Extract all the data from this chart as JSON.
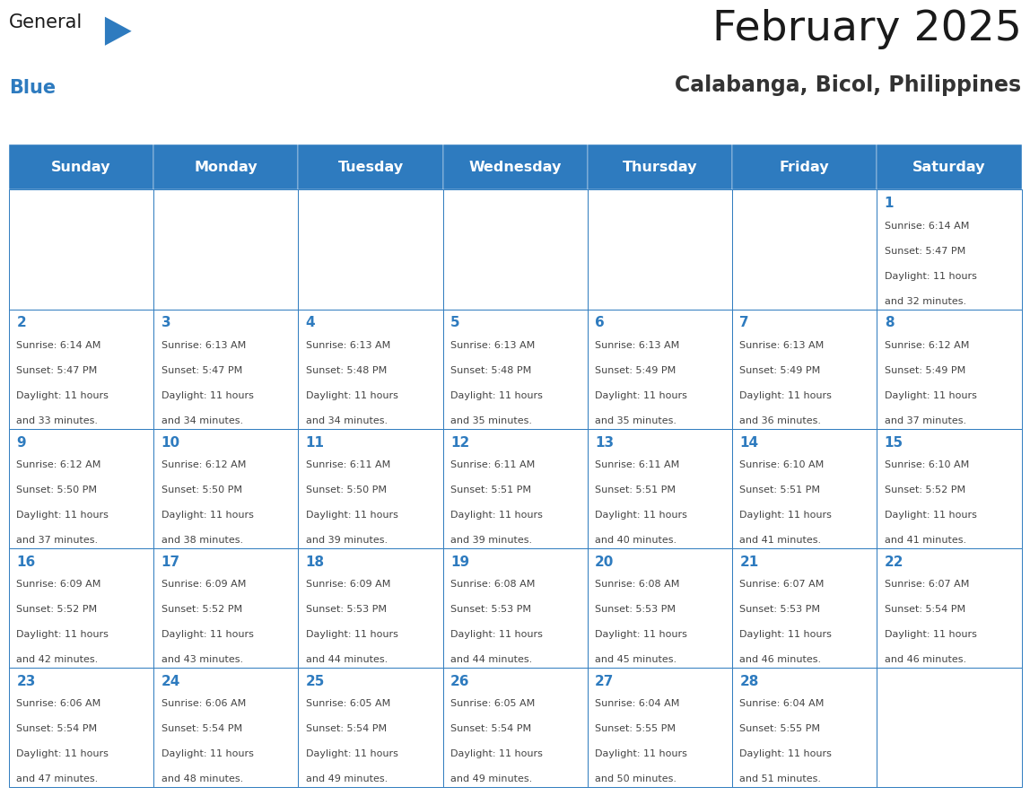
{
  "title": "February 2025",
  "subtitle": "Calabanga, Bicol, Philippines",
  "days_of_week": [
    "Sunday",
    "Monday",
    "Tuesday",
    "Wednesday",
    "Thursday",
    "Friday",
    "Saturday"
  ],
  "header_bg": "#2E7BBF",
  "header_text": "#FFFFFF",
  "cell_bg": "#FFFFFF",
  "border_color": "#2E7BBF",
  "day_num_color": "#2E7BBF",
  "info_color": "#444444",
  "title_color": "#1a1a1a",
  "subtitle_color": "#333333",
  "logo_general_color": "#1a1a1a",
  "logo_blue_color": "#2E7BBF",
  "calendar_data": [
    [
      null,
      null,
      null,
      null,
      null,
      null,
      {
        "day": 1,
        "sunrise": "6:14 AM",
        "sunset": "5:47 PM",
        "daylight": "11 hours and 32 minutes."
      }
    ],
    [
      {
        "day": 2,
        "sunrise": "6:14 AM",
        "sunset": "5:47 PM",
        "daylight": "11 hours and 33 minutes."
      },
      {
        "day": 3,
        "sunrise": "6:13 AM",
        "sunset": "5:47 PM",
        "daylight": "11 hours and 34 minutes."
      },
      {
        "day": 4,
        "sunrise": "6:13 AM",
        "sunset": "5:48 PM",
        "daylight": "11 hours and 34 minutes."
      },
      {
        "day": 5,
        "sunrise": "6:13 AM",
        "sunset": "5:48 PM",
        "daylight": "11 hours and 35 minutes."
      },
      {
        "day": 6,
        "sunrise": "6:13 AM",
        "sunset": "5:49 PM",
        "daylight": "11 hours and 35 minutes."
      },
      {
        "day": 7,
        "sunrise": "6:13 AM",
        "sunset": "5:49 PM",
        "daylight": "11 hours and 36 minutes."
      },
      {
        "day": 8,
        "sunrise": "6:12 AM",
        "sunset": "5:49 PM",
        "daylight": "11 hours and 37 minutes."
      }
    ],
    [
      {
        "day": 9,
        "sunrise": "6:12 AM",
        "sunset": "5:50 PM",
        "daylight": "11 hours and 37 minutes."
      },
      {
        "day": 10,
        "sunrise": "6:12 AM",
        "sunset": "5:50 PM",
        "daylight": "11 hours and 38 minutes."
      },
      {
        "day": 11,
        "sunrise": "6:11 AM",
        "sunset": "5:50 PM",
        "daylight": "11 hours and 39 minutes."
      },
      {
        "day": 12,
        "sunrise": "6:11 AM",
        "sunset": "5:51 PM",
        "daylight": "11 hours and 39 minutes."
      },
      {
        "day": 13,
        "sunrise": "6:11 AM",
        "sunset": "5:51 PM",
        "daylight": "11 hours and 40 minutes."
      },
      {
        "day": 14,
        "sunrise": "6:10 AM",
        "sunset": "5:51 PM",
        "daylight": "11 hours and 41 minutes."
      },
      {
        "day": 15,
        "sunrise": "6:10 AM",
        "sunset": "5:52 PM",
        "daylight": "11 hours and 41 minutes."
      }
    ],
    [
      {
        "day": 16,
        "sunrise": "6:09 AM",
        "sunset": "5:52 PM",
        "daylight": "11 hours and 42 minutes."
      },
      {
        "day": 17,
        "sunrise": "6:09 AM",
        "sunset": "5:52 PM",
        "daylight": "11 hours and 43 minutes."
      },
      {
        "day": 18,
        "sunrise": "6:09 AM",
        "sunset": "5:53 PM",
        "daylight": "11 hours and 44 minutes."
      },
      {
        "day": 19,
        "sunrise": "6:08 AM",
        "sunset": "5:53 PM",
        "daylight": "11 hours and 44 minutes."
      },
      {
        "day": 20,
        "sunrise": "6:08 AM",
        "sunset": "5:53 PM",
        "daylight": "11 hours and 45 minutes."
      },
      {
        "day": 21,
        "sunrise": "6:07 AM",
        "sunset": "5:53 PM",
        "daylight": "11 hours and 46 minutes."
      },
      {
        "day": 22,
        "sunrise": "6:07 AM",
        "sunset": "5:54 PM",
        "daylight": "11 hours and 46 minutes."
      }
    ],
    [
      {
        "day": 23,
        "sunrise": "6:06 AM",
        "sunset": "5:54 PM",
        "daylight": "11 hours and 47 minutes."
      },
      {
        "day": 24,
        "sunrise": "6:06 AM",
        "sunset": "5:54 PM",
        "daylight": "11 hours and 48 minutes."
      },
      {
        "day": 25,
        "sunrise": "6:05 AM",
        "sunset": "5:54 PM",
        "daylight": "11 hours and 49 minutes."
      },
      {
        "day": 26,
        "sunrise": "6:05 AM",
        "sunset": "5:54 PM",
        "daylight": "11 hours and 49 minutes."
      },
      {
        "day": 27,
        "sunrise": "6:04 AM",
        "sunset": "5:55 PM",
        "daylight": "11 hours and 50 minutes."
      },
      {
        "day": 28,
        "sunrise": "6:04 AM",
        "sunset": "5:55 PM",
        "daylight": "11 hours and 51 minutes."
      },
      null
    ]
  ]
}
